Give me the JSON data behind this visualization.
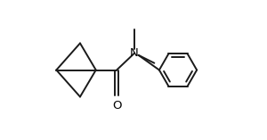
{
  "background_color": "#ffffff",
  "line_color": "#1a1a1a",
  "line_width": 1.4,
  "text_color": "#000000",
  "font_size": 9.5,
  "xlim": [
    0,
    10
  ],
  "ylim": [
    0,
    7
  ]
}
